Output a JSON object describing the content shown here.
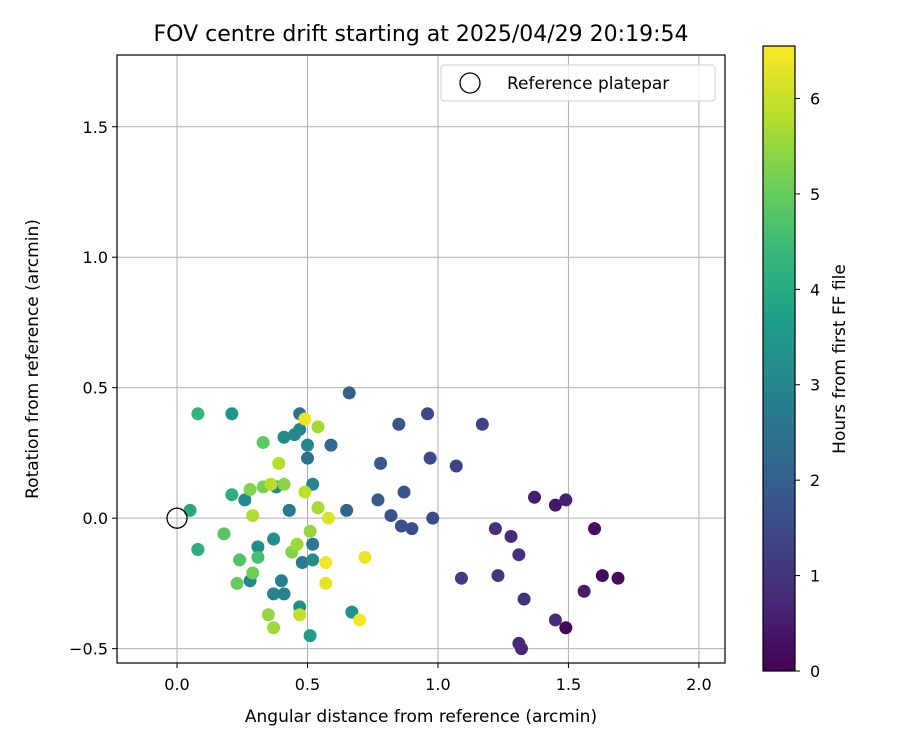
{
  "chart_data": {
    "type": "scatter",
    "title": "FOV centre drift starting at 2025/04/29 20:19:54",
    "xlabel": "Angular distance from reference (arcmin)",
    "ylabel": "Rotation from reference (arcmin)",
    "xlim": [
      -0.23,
      2.1
    ],
    "ylim": [
      -0.555,
      1.775
    ],
    "x_ticks": [
      0.0,
      0.5,
      1.0,
      1.5,
      2.0
    ],
    "x_tick_labels": [
      "0.0",
      "0.5",
      "1.0",
      "1.5",
      "2.0"
    ],
    "y_ticks": [
      -0.5,
      0.0,
      0.5,
      1.0,
      1.5
    ],
    "y_tick_labels": [
      "−0.5",
      "0.0",
      "0.5",
      "1.0",
      "1.5"
    ],
    "grid": true,
    "legend": {
      "label": "Reference platepar",
      "placement": "top-right"
    },
    "reference_point": {
      "x": 0.0,
      "y": 0.0
    },
    "colorbar": {
      "label": "Hours from first FF file",
      "range": [
        0,
        6.55
      ],
      "ticks": [
        0,
        1,
        2,
        3,
        4,
        5,
        6
      ],
      "tick_labels": [
        "0",
        "1",
        "2",
        "3",
        "4",
        "5",
        "6"
      ],
      "colormap": "viridis"
    },
    "colormap_stops": [
      "#440154",
      "#482878",
      "#3e4989",
      "#31688e",
      "#26828e",
      "#1f9e89",
      "#35b779",
      "#6ece58",
      "#b5de2b",
      "#fde725"
    ],
    "points": [
      {
        "x": 1.49,
        "y": -0.42,
        "hours": 0.1
      },
      {
        "x": 1.69,
        "y": -0.23,
        "hours": 0.15
      },
      {
        "x": 1.63,
        "y": -0.22,
        "hours": 0.2
      },
      {
        "x": 1.6,
        "y": -0.04,
        "hours": 0.25
      },
      {
        "x": 1.45,
        "y": 0.05,
        "hours": 0.4
      },
      {
        "x": 1.56,
        "y": -0.28,
        "hours": 0.5
      },
      {
        "x": 1.37,
        "y": 0.08,
        "hours": 0.55
      },
      {
        "x": 1.49,
        "y": 0.07,
        "hours": 0.6
      },
      {
        "x": 1.32,
        "y": -0.5,
        "hours": 0.7
      },
      {
        "x": 1.31,
        "y": -0.48,
        "hours": 0.75
      },
      {
        "x": 1.28,
        "y": -0.07,
        "hours": 0.8
      },
      {
        "x": 1.45,
        "y": -0.39,
        "hours": 0.8
      },
      {
        "x": 1.22,
        "y": -0.04,
        "hours": 0.85
      },
      {
        "x": 1.31,
        "y": -0.14,
        "hours": 0.9
      },
      {
        "x": 1.33,
        "y": -0.31,
        "hours": 0.95
      },
      {
        "x": 1.23,
        "y": -0.22,
        "hours": 1.05
      },
      {
        "x": 1.09,
        "y": -0.23,
        "hours": 1.15
      },
      {
        "x": 1.17,
        "y": 0.36,
        "hours": 1.3
      },
      {
        "x": 1.07,
        "y": 0.2,
        "hours": 1.35
      },
      {
        "x": 0.96,
        "y": 0.4,
        "hours": 1.4
      },
      {
        "x": 0.97,
        "y": 0.23,
        "hours": 1.45
      },
      {
        "x": 0.98,
        "y": 0.0,
        "hours": 1.5
      },
      {
        "x": 0.9,
        "y": -0.04,
        "hours": 1.55
      },
      {
        "x": 0.86,
        "y": -0.03,
        "hours": 1.6
      },
      {
        "x": 0.82,
        "y": 0.01,
        "hours": 1.65
      },
      {
        "x": 0.85,
        "y": 0.36,
        "hours": 1.7
      },
      {
        "x": 0.87,
        "y": 0.1,
        "hours": 1.75
      },
      {
        "x": 0.78,
        "y": 0.21,
        "hours": 1.8
      },
      {
        "x": 0.77,
        "y": 0.07,
        "hours": 1.85
      },
      {
        "x": 0.66,
        "y": 0.48,
        "hours": 2.0
      },
      {
        "x": 0.65,
        "y": 0.03,
        "hours": 2.1
      },
      {
        "x": 0.59,
        "y": 0.28,
        "hours": 2.2
      },
      {
        "x": 0.5,
        "y": 0.23,
        "hours": 2.4
      },
      {
        "x": 0.47,
        "y": 0.4,
        "hours": 2.5
      },
      {
        "x": 0.52,
        "y": -0.1,
        "hours": 2.6
      },
      {
        "x": 0.43,
        "y": 0.03,
        "hours": 2.7
      },
      {
        "x": 0.48,
        "y": -0.17,
        "hours": 2.7
      },
      {
        "x": 0.4,
        "y": -0.24,
        "hours": 2.8
      },
      {
        "x": 0.41,
        "y": -0.29,
        "hours": 2.9
      },
      {
        "x": 0.37,
        "y": -0.29,
        "hours": 2.95
      },
      {
        "x": 0.52,
        "y": 0.13,
        "hours": 3.0
      },
      {
        "x": 0.5,
        "y": 0.28,
        "hours": 3.0
      },
      {
        "x": 0.47,
        "y": 0.34,
        "hours": 3.05
      },
      {
        "x": 0.45,
        "y": 0.32,
        "hours": 3.05
      },
      {
        "x": 0.41,
        "y": 0.31,
        "hours": 3.1
      },
      {
        "x": 0.28,
        "y": -0.24,
        "hours": 3.1
      },
      {
        "x": 0.26,
        "y": 0.07,
        "hours": 3.15
      },
      {
        "x": 0.38,
        "y": 0.12,
        "hours": 3.15
      },
      {
        "x": 0.37,
        "y": -0.08,
        "hours": 3.2
      },
      {
        "x": 0.31,
        "y": -0.11,
        "hours": 3.2
      },
      {
        "x": 0.52,
        "y": -0.16,
        "hours": 3.2
      },
      {
        "x": 0.47,
        "y": -0.34,
        "hours": 3.3
      },
      {
        "x": 0.67,
        "y": -0.36,
        "hours": 3.4
      },
      {
        "x": 0.21,
        "y": 0.4,
        "hours": 3.45
      },
      {
        "x": 0.51,
        "y": -0.45,
        "hours": 3.55
      },
      {
        "x": 0.05,
        "y": 0.03,
        "hours": 3.9
      },
      {
        "x": 0.08,
        "y": -0.12,
        "hours": 4.0
      },
      {
        "x": 0.08,
        "y": -0.12,
        "hours": 4.1
      },
      {
        "x": 0.21,
        "y": 0.09,
        "hours": 4.1
      },
      {
        "x": 0.08,
        "y": 0.4,
        "hours": 4.3
      },
      {
        "x": 0.31,
        "y": -0.15,
        "hours": 4.6
      },
      {
        "x": 0.24,
        "y": -0.16,
        "hours": 4.7
      },
      {
        "x": 0.18,
        "y": -0.06,
        "hours": 4.8
      },
      {
        "x": 0.33,
        "y": 0.29,
        "hours": 4.9
      },
      {
        "x": 0.23,
        "y": -0.25,
        "hours": 5.0
      },
      {
        "x": 0.29,
        "y": -0.21,
        "hours": 5.1
      },
      {
        "x": 0.33,
        "y": 0.12,
        "hours": 5.2
      },
      {
        "x": 0.44,
        "y": -0.13,
        "hours": 5.3
      },
      {
        "x": 0.28,
        "y": 0.11,
        "hours": 5.3
      },
      {
        "x": 0.41,
        "y": 0.13,
        "hours": 5.35
      },
      {
        "x": 0.35,
        "y": -0.37,
        "hours": 5.45
      },
      {
        "x": 0.51,
        "y": -0.05,
        "hours": 5.5
      },
      {
        "x": 0.46,
        "y": -0.1,
        "hours": 5.6
      },
      {
        "x": 0.37,
        "y": -0.42,
        "hours": 5.6
      },
      {
        "x": 0.54,
        "y": 0.35,
        "hours": 5.65
      },
      {
        "x": 0.54,
        "y": 0.04,
        "hours": 5.7
      },
      {
        "x": 0.29,
        "y": 0.01,
        "hours": 5.75
      },
      {
        "x": 0.39,
        "y": 0.21,
        "hours": 5.8
      },
      {
        "x": 0.36,
        "y": 0.13,
        "hours": 5.85
      },
      {
        "x": 0.49,
        "y": 0.1,
        "hours": 5.9
      },
      {
        "x": 0.47,
        "y": -0.37,
        "hours": 5.95
      },
      {
        "x": 0.58,
        "y": 0.0,
        "hours": 6.2
      },
      {
        "x": 0.57,
        "y": -0.25,
        "hours": 6.3
      },
      {
        "x": 0.72,
        "y": -0.15,
        "hours": 6.35
      },
      {
        "x": 0.49,
        "y": 0.38,
        "hours": 6.4
      },
      {
        "x": 0.57,
        "y": -0.17,
        "hours": 6.45
      },
      {
        "x": 0.7,
        "y": -0.39,
        "hours": 6.5
      }
    ]
  }
}
